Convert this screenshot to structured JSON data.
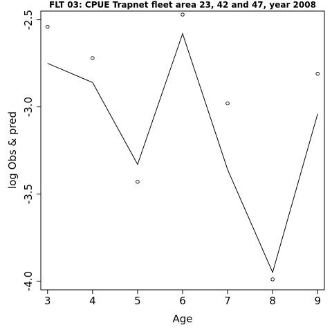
{
  "chart_data": {
    "type": "line",
    "title": "FLT 03: CPUE Trapnet fleet area 23, 42 and 47, year 2008",
    "xlabel": "Age",
    "ylabel": "log Obs & pred",
    "x": [
      3,
      4,
      5,
      6,
      7,
      8,
      9
    ],
    "x_ticks": [
      "3",
      "4",
      "5",
      "6",
      "7",
      "8",
      "9"
    ],
    "y_ticks": [
      "-2.5",
      "-3.0",
      "-3.5",
      "-4.0"
    ],
    "y_tick_values": [
      -2.5,
      -3.0,
      -3.5,
      -4.0
    ],
    "xlim": [
      2.85,
      9.15
    ],
    "ylim": [
      -4.05,
      -2.45
    ],
    "series": [
      {
        "style": "points",
        "values": [
          -2.54,
          -2.72,
          -3.43,
          -2.47,
          -2.98,
          -3.99,
          -2.81
        ]
      },
      {
        "style": "line",
        "values": [
          -2.75,
          -2.86,
          -3.33,
          -2.58,
          -3.36,
          -3.95,
          -3.04
        ]
      }
    ],
    "grid": false,
    "colors": {
      "line": "#000000",
      "points": "#000000"
    }
  }
}
